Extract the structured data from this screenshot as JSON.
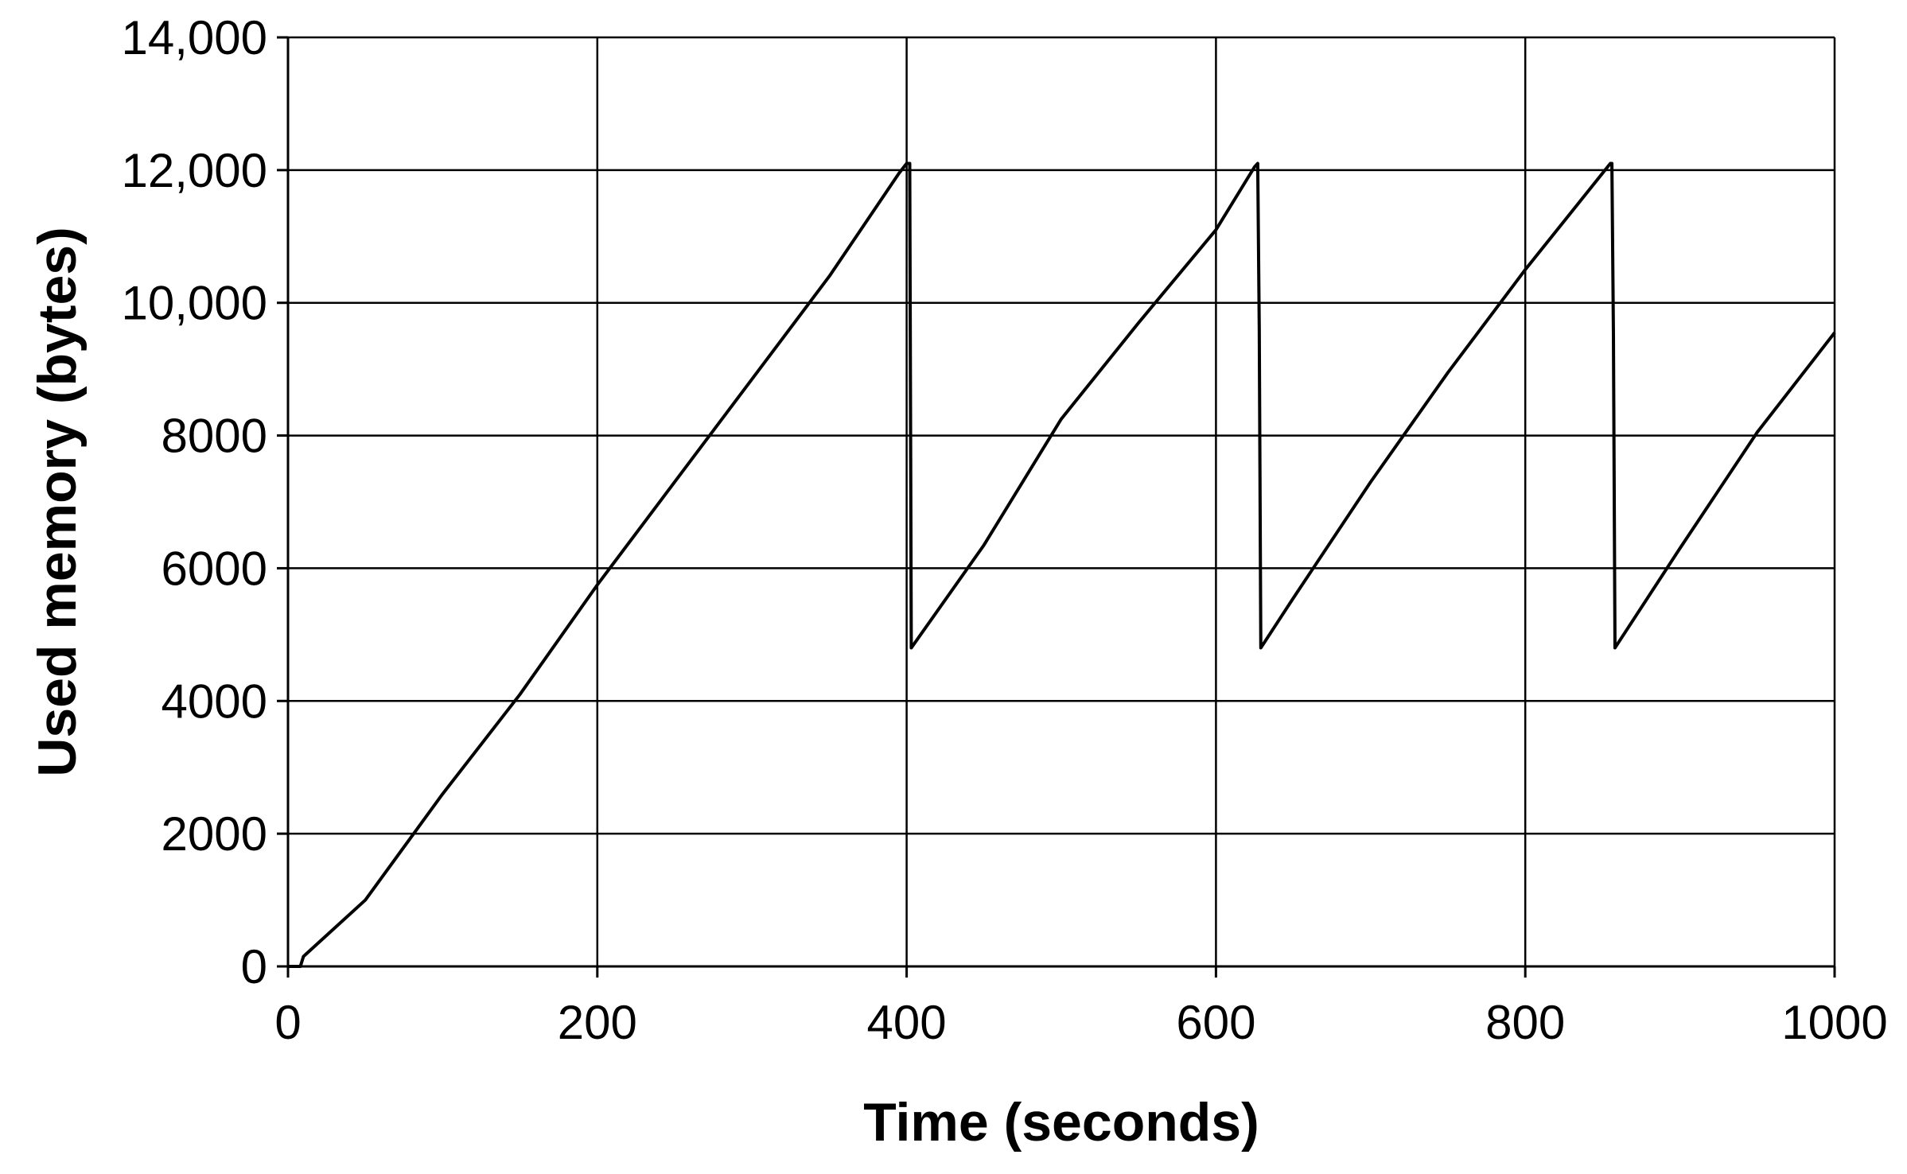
{
  "chart_data": {
    "type": "line",
    "title": "",
    "xlabel": "Time (seconds)",
    "ylabel": "Used memory (bytes)",
    "xlim": [
      0,
      1000
    ],
    "ylim": [
      0,
      14000
    ],
    "x_ticks": [
      {
        "value": 0,
        "label": "0"
      },
      {
        "value": 200,
        "label": "200"
      },
      {
        "value": 400,
        "label": "400"
      },
      {
        "value": 600,
        "label": "600"
      },
      {
        "value": 800,
        "label": "800"
      },
      {
        "value": 1000,
        "label": "1000"
      }
    ],
    "y_ticks": [
      {
        "value": 0,
        "label": "0"
      },
      {
        "value": 2000,
        "label": "2000"
      },
      {
        "value": 4000,
        "label": "4000"
      },
      {
        "value": 6000,
        "label": "6000"
      },
      {
        "value": 8000,
        "label": "8000"
      },
      {
        "value": 10000,
        "label": "10,000"
      },
      {
        "value": 12000,
        "label": "12,000"
      },
      {
        "value": 14000,
        "label": "14,000"
      }
    ],
    "grid": true,
    "legend": "none",
    "series": [
      {
        "color": "#000000",
        "points": [
          [
            0,
            0
          ],
          [
            8,
            0
          ],
          [
            10,
            150
          ],
          [
            50,
            1000
          ],
          [
            100,
            2600
          ],
          [
            150,
            4100
          ],
          [
            200,
            5750
          ],
          [
            250,
            7300
          ],
          [
            300,
            8850
          ],
          [
            350,
            10400
          ],
          [
            395,
            11950
          ],
          [
            400,
            12100
          ],
          [
            402,
            12100
          ],
          [
            403,
            4800
          ],
          [
            450,
            6350
          ],
          [
            500,
            8250
          ],
          [
            550,
            9700
          ],
          [
            600,
            11100
          ],
          [
            625,
            12050
          ],
          [
            627,
            12100
          ],
          [
            628,
            9600
          ],
          [
            629,
            4800
          ],
          [
            650,
            5550
          ],
          [
            700,
            7300
          ],
          [
            750,
            8950
          ],
          [
            800,
            10500
          ],
          [
            855,
            12100
          ],
          [
            856,
            12100
          ],
          [
            857,
            9500
          ],
          [
            858,
            4800
          ],
          [
            900,
            6300
          ],
          [
            950,
            8050
          ],
          [
            1000,
            9550
          ]
        ]
      }
    ]
  }
}
